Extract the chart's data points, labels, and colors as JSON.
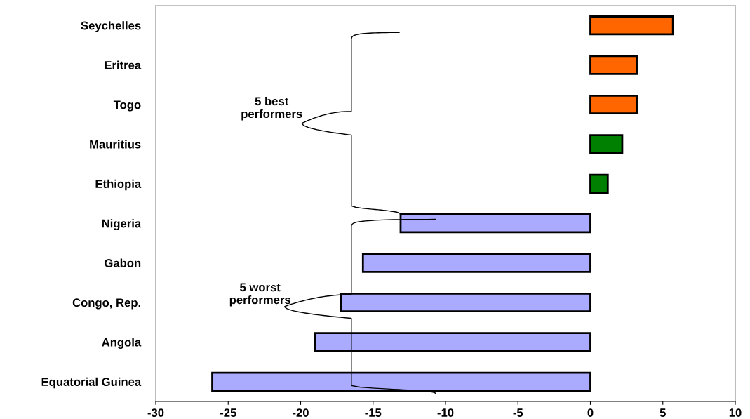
{
  "chart_data": {
    "type": "bar",
    "orientation": "horizontal",
    "categories": [
      "Seychelles",
      "Eritrea",
      "Togo",
      "Mauritius",
      "Ethiopia",
      "Nigeria",
      "Gabon",
      "Congo, Rep.",
      "Angola",
      "Equatorial Guinea"
    ],
    "values": [
      5.7,
      3.2,
      3.2,
      2.2,
      1.2,
      -13.1,
      -15.7,
      -17.2,
      -19.0,
      -26.1
    ],
    "colors": [
      "#ff6600",
      "#ff6600",
      "#ff6600",
      "#008000",
      "#008000",
      "#aaaaff",
      "#aaaaff",
      "#aaaaff",
      "#aaaaff",
      "#aaaaff"
    ],
    "xlim": [
      -30,
      10
    ],
    "xticks": [
      -30,
      -25,
      -20,
      -15,
      -10,
      -5,
      0,
      5,
      10
    ],
    "annotations": [
      "5 best\nperformers",
      "5 worst\nperformers"
    ],
    "grid": false,
    "legend": false
  }
}
